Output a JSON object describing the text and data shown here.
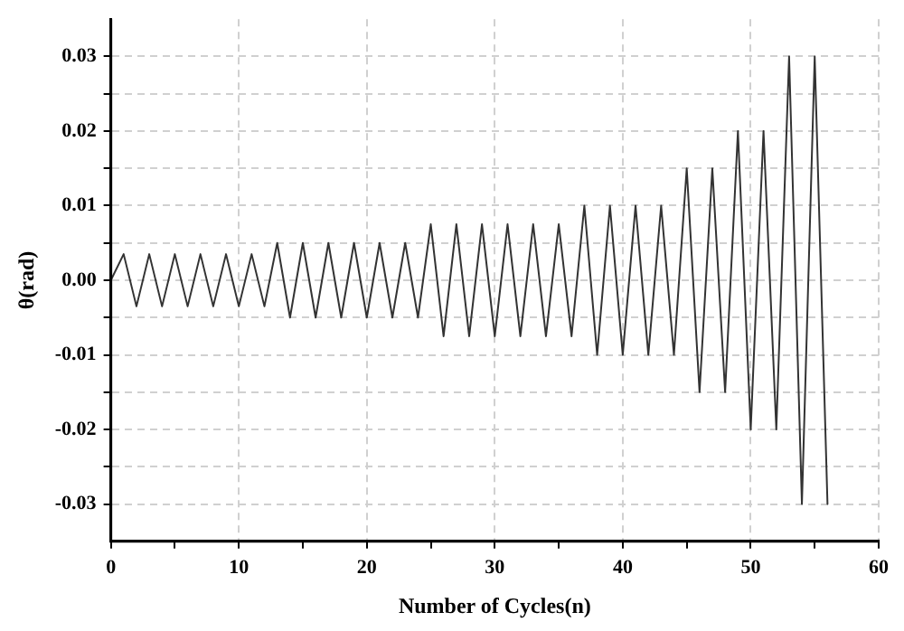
{
  "chart_data": {
    "type": "line",
    "xlabel": "Number of Cycles(n)",
    "ylabel": "θ(rad)",
    "x": [
      0,
      1,
      2,
      3,
      4,
      5,
      6,
      7,
      8,
      9,
      10,
      11,
      12,
      13,
      14,
      15,
      16,
      17,
      18,
      19,
      20,
      21,
      22,
      23,
      24,
      25,
      26,
      27,
      28,
      29,
      30,
      31,
      32,
      33,
      34,
      35,
      36,
      37,
      38,
      39,
      40,
      41,
      42,
      43,
      44,
      45,
      46,
      47,
      48,
      49,
      50,
      51,
      52,
      53,
      54,
      55,
      56
    ],
    "series": [
      {
        "color": "#333333",
        "values": [
          0,
          0.0035,
          -0.0035,
          0.0035,
          -0.0035,
          0.0035,
          -0.0035,
          0.0035,
          -0.0035,
          0.0035,
          -0.0035,
          0.0035,
          -0.0035,
          0.005,
          -0.005,
          0.005,
          -0.005,
          0.005,
          -0.005,
          0.005,
          -0.005,
          0.005,
          -0.005,
          0.005,
          -0.005,
          0.0075,
          -0.0075,
          0.0075,
          -0.0075,
          0.0075,
          -0.0075,
          0.0075,
          -0.0075,
          0.0075,
          -0.0075,
          0.0075,
          -0.0075,
          0.01,
          -0.01,
          0.01,
          -0.01,
          0.01,
          -0.01,
          0.01,
          -0.01,
          0.015,
          -0.015,
          0.015,
          -0.015,
          0.02,
          -0.02,
          0.02,
          -0.02,
          0.03,
          -0.03,
          0.03,
          -0.03
        ]
      }
    ],
    "xlim": [
      0,
      60
    ],
    "xticks": [
      0,
      {
        "value": 5,
        "label": null
      },
      10,
      {
        "value": 15,
        "label": null
      },
      20,
      {
        "value": 25,
        "label": null
      },
      30,
      {
        "value": 35,
        "label": null
      },
      40,
      {
        "value": 45,
        "label": null
      },
      50,
      {
        "value": 55,
        "label": null
      },
      60
    ],
    "ylim": [
      -0.035,
      0.035
    ],
    "yticks": [
      {
        "value": -0.03,
        "label": "-0.03"
      },
      {
        "value": -0.025,
        "label": null
      },
      {
        "value": -0.02,
        "label": "-0.02"
      },
      {
        "value": -0.015,
        "label": null
      },
      {
        "value": -0.01,
        "label": "-0.01"
      },
      {
        "value": -0.005,
        "label": null
      },
      {
        "value": 0,
        "label": "0.00"
      },
      {
        "value": 0.005,
        "label": null
      },
      {
        "value": 0.01,
        "label": "0.01"
      },
      {
        "value": 0.015,
        "label": null
      },
      {
        "value": 0.02,
        "label": "0.02"
      },
      {
        "value": 0.025,
        "label": null
      },
      {
        "value": 0.03,
        "label": "0.03"
      }
    ],
    "grid": true,
    "legend": false,
    "marker": "none",
    "line_style": "solid"
  }
}
